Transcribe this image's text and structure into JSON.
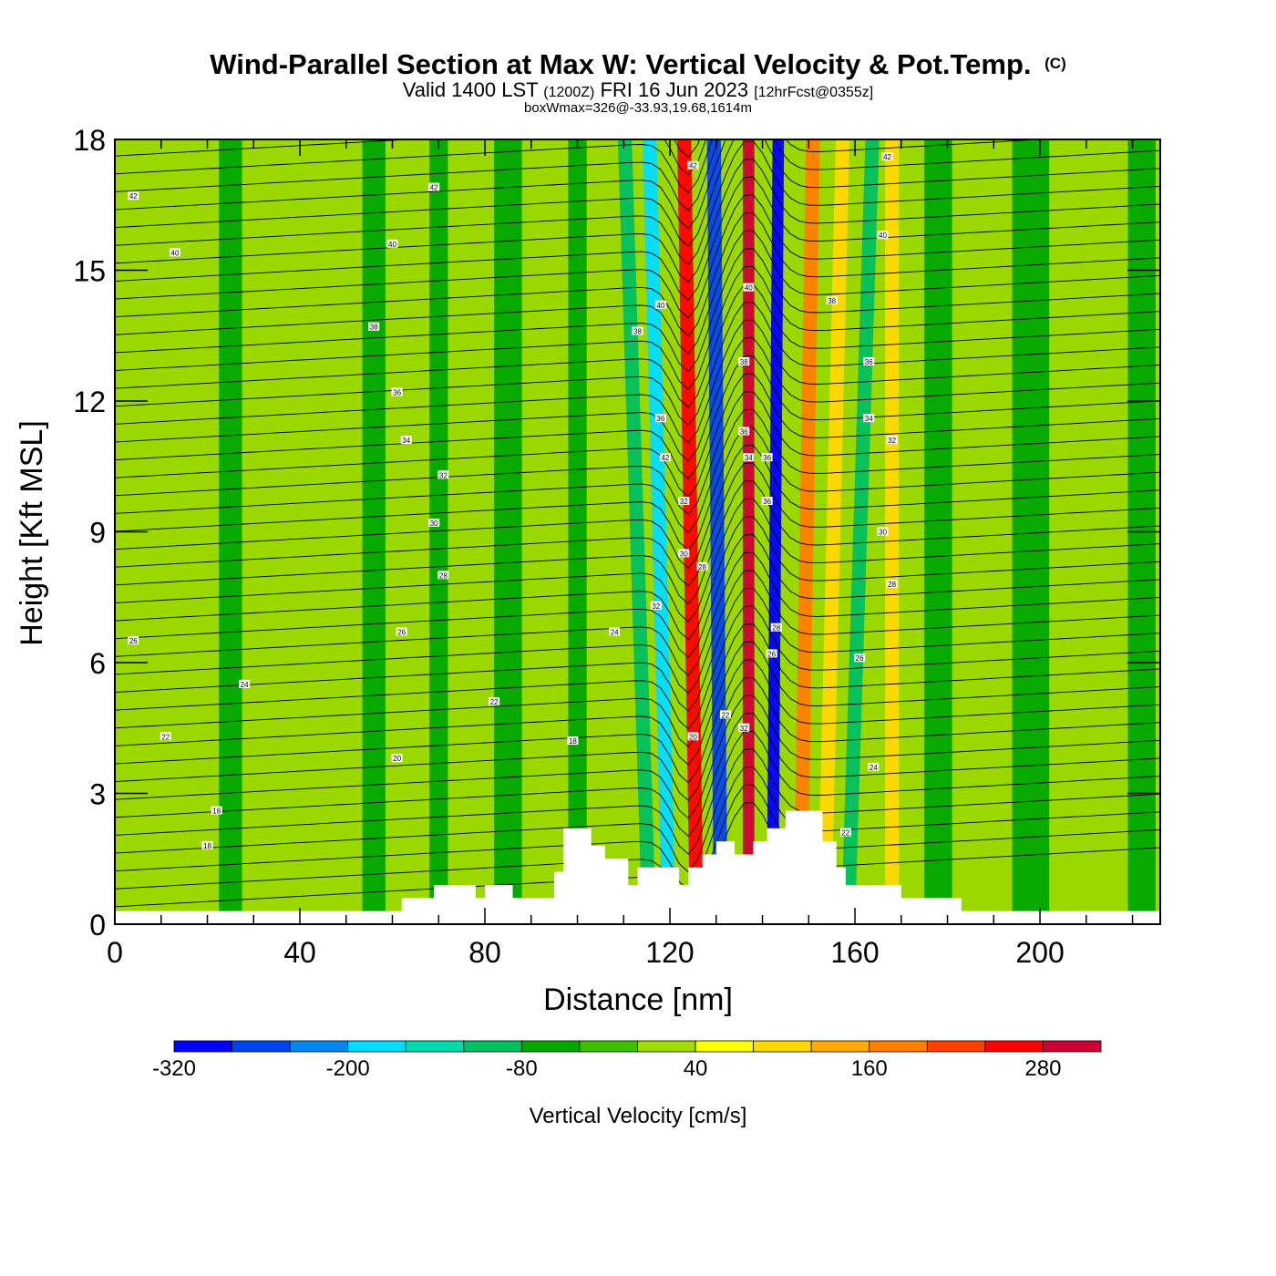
{
  "title": "Wind-Parallel Section at Max W: Vertical Velocity & Pot.Temp.",
  "copyright": "(C)",
  "subtitle_main": "Valid 1400 LST",
  "subtitle_utc": "(1200Z)",
  "subtitle_date": "FRI 16 Jun 2023",
  "subtitle_fcst": "[12hrFcst@0355z]",
  "subtitle2": "boxWmax=326@-33.93,19.68,1614m",
  "colors": {
    "background_green": "#9ad800",
    "levels": [
      "#0000ff",
      "#0044ee",
      "#0088ee",
      "#00ddff",
      "#00dcb0",
      "#00c060",
      "#00a800",
      "#3cc000",
      "#a0dc00",
      "#ffff00",
      "#ffd800",
      "#ffaa00",
      "#ff8000",
      "#ff4000",
      "#ff0000",
      "#cc0033"
    ],
    "terrain": "#ffffff",
    "contour": "#000000"
  },
  "chart_data": {
    "type": "heatmap",
    "xlabel": "Distance [nm]",
    "ylabel": "Height [Kft MSL]",
    "xlim": [
      0,
      226
    ],
    "ylim": [
      0,
      18
    ],
    "xticks": [
      "0",
      "40",
      "80",
      "120",
      "160",
      "200"
    ],
    "yticks": [
      "0",
      "3",
      "6",
      "9",
      "12",
      "15",
      "18"
    ],
    "colorbar": {
      "label": "Vertical Velocity [cm/s]",
      "tick_labels": [
        "-320",
        "-200",
        "-80",
        "40",
        "160",
        "280"
      ],
      "levels": [
        -320,
        -280,
        -240,
        -200,
        -160,
        -120,
        -80,
        -40,
        0,
        40,
        80,
        120,
        160,
        200,
        240,
        280,
        320
      ]
    },
    "velocity_bands": [
      {
        "x": 25,
        "width": 5,
        "value": -50
      },
      {
        "x": 56,
        "width": 5,
        "value": -50
      },
      {
        "x": 70,
        "width": 4,
        "value": -50
      },
      {
        "x": 85,
        "width": 6,
        "value": -60
      },
      {
        "x": 100,
        "width": 4,
        "value": -70
      },
      {
        "x": 112,
        "width": 3,
        "value": -90
      },
      {
        "x": 117,
        "width": 3,
        "value": -200
      },
      {
        "x": 124,
        "width": 3,
        "value": 250
      },
      {
        "x": 130,
        "width": 3,
        "value": -250
      },
      {
        "x": 137,
        "width": 2.5,
        "value": 326
      },
      {
        "x": 143,
        "width": 2.5,
        "value": -320
      },
      {
        "x": 150,
        "width": 3,
        "value": 170
      },
      {
        "x": 156,
        "width": 3,
        "value": 90
      },
      {
        "x": 162,
        "width": 3,
        "value": -90
      },
      {
        "x": 168,
        "width": 3,
        "value": 100
      },
      {
        "x": 178,
        "width": 6,
        "value": -60
      },
      {
        "x": 198,
        "width": 8,
        "value": -50
      },
      {
        "x": 222,
        "width": 6,
        "value": -60
      }
    ],
    "terrain_kft": [
      [
        0,
        0.3
      ],
      [
        62,
        0.3
      ],
      [
        62,
        0.6
      ],
      [
        69,
        0.6
      ],
      [
        69,
        0.9
      ],
      [
        78,
        0.9
      ],
      [
        78,
        0.6
      ],
      [
        80,
        0.6
      ],
      [
        80,
        0.9
      ],
      [
        86,
        0.9
      ],
      [
        86,
        0.6
      ],
      [
        95,
        0.6
      ],
      [
        95,
        1.2
      ],
      [
        97,
        1.2
      ],
      [
        97,
        2.2
      ],
      [
        103,
        2.2
      ],
      [
        103,
        1.8
      ],
      [
        106,
        1.8
      ],
      [
        106,
        1.5
      ],
      [
        111,
        1.5
      ],
      [
        111,
        0.9
      ],
      [
        113,
        0.9
      ],
      [
        113,
        1.3
      ],
      [
        122,
        1.3
      ],
      [
        122,
        0.9
      ],
      [
        124,
        0.9
      ],
      [
        124,
        1.3
      ],
      [
        127,
        1.3
      ],
      [
        127,
        1.6
      ],
      [
        130,
        1.6
      ],
      [
        130,
        1.9
      ],
      [
        134,
        1.9
      ],
      [
        134,
        1.6
      ],
      [
        138,
        1.6
      ],
      [
        138,
        1.9
      ],
      [
        141,
        1.9
      ],
      [
        141,
        2.2
      ],
      [
        145,
        2.2
      ],
      [
        145,
        2.6
      ],
      [
        153,
        2.6
      ],
      [
        153,
        1.9
      ],
      [
        156,
        1.9
      ],
      [
        156,
        1.3
      ],
      [
        158,
        1.3
      ],
      [
        158,
        0.9
      ],
      [
        170,
        0.9
      ],
      [
        170,
        0.6
      ],
      [
        183,
        0.6
      ],
      [
        183,
        0.3
      ],
      [
        226,
        0.3
      ]
    ],
    "theta_labels": [
      {
        "x": 4,
        "y": 16.7,
        "t": "42"
      },
      {
        "x": 69,
        "y": 16.9,
        "t": "42"
      },
      {
        "x": 125,
        "y": 17.4,
        "t": "42"
      },
      {
        "x": 167,
        "y": 17.6,
        "t": "42"
      },
      {
        "x": 13,
        "y": 15.4,
        "t": "40"
      },
      {
        "x": 60,
        "y": 15.6,
        "t": "40"
      },
      {
        "x": 166,
        "y": 15.8,
        "t": "40"
      },
      {
        "x": 137,
        "y": 14.6,
        "t": "40"
      },
      {
        "x": 56,
        "y": 13.7,
        "t": "38"
      },
      {
        "x": 113,
        "y": 13.6,
        "t": "38"
      },
      {
        "x": 118,
        "y": 14.2,
        "t": "40"
      },
      {
        "x": 155,
        "y": 14.3,
        "t": "38"
      },
      {
        "x": 61,
        "y": 12.2,
        "t": "36"
      },
      {
        "x": 163,
        "y": 12.9,
        "t": "36"
      },
      {
        "x": 136,
        "y": 12.9,
        "t": "38"
      },
      {
        "x": 63,
        "y": 11.1,
        "t": "34"
      },
      {
        "x": 118,
        "y": 11.6,
        "t": "36"
      },
      {
        "x": 163,
        "y": 11.6,
        "t": "34"
      },
      {
        "x": 136,
        "y": 11.3,
        "t": "36"
      },
      {
        "x": 71,
        "y": 10.3,
        "t": "32"
      },
      {
        "x": 119,
        "y": 10.7,
        "t": "42"
      },
      {
        "x": 168,
        "y": 11.1,
        "t": "32"
      },
      {
        "x": 137,
        "y": 10.7,
        "t": "34"
      },
      {
        "x": 141,
        "y": 10.7,
        "t": "36"
      },
      {
        "x": 69,
        "y": 9.2,
        "t": "30"
      },
      {
        "x": 123,
        "y": 9.7,
        "t": "32"
      },
      {
        "x": 141,
        "y": 9.7,
        "t": "36"
      },
      {
        "x": 166,
        "y": 9.0,
        "t": "30"
      },
      {
        "x": 71,
        "y": 8.0,
        "t": "28"
      },
      {
        "x": 123,
        "y": 8.5,
        "t": "30"
      },
      {
        "x": 127,
        "y": 8.2,
        "t": "28"
      },
      {
        "x": 168,
        "y": 7.8,
        "t": "28"
      },
      {
        "x": 4,
        "y": 6.5,
        "t": "26"
      },
      {
        "x": 62,
        "y": 6.7,
        "t": "26"
      },
      {
        "x": 108,
        "y": 6.7,
        "t": "24"
      },
      {
        "x": 117,
        "y": 7.3,
        "t": "32"
      },
      {
        "x": 143,
        "y": 6.8,
        "t": "28"
      },
      {
        "x": 142,
        "y": 6.2,
        "t": "26"
      },
      {
        "x": 161,
        "y": 6.1,
        "t": "26"
      },
      {
        "x": 28,
        "y": 5.5,
        "t": "24"
      },
      {
        "x": 82,
        "y": 5.1,
        "t": "22"
      },
      {
        "x": 132,
        "y": 4.8,
        "t": "22"
      },
      {
        "x": 136,
        "y": 4.5,
        "t": "32"
      },
      {
        "x": 11,
        "y": 4.3,
        "t": "22"
      },
      {
        "x": 99,
        "y": 4.2,
        "t": "18"
      },
      {
        "x": 125,
        "y": 4.3,
        "t": "20"
      },
      {
        "x": 61,
        "y": 3.8,
        "t": "20"
      },
      {
        "x": 164,
        "y": 3.6,
        "t": "24"
      },
      {
        "x": 22,
        "y": 2.6,
        "t": "18"
      },
      {
        "x": 158,
        "y": 2.1,
        "t": "22"
      },
      {
        "x": 20,
        "y": 1.8,
        "t": "18"
      }
    ]
  }
}
